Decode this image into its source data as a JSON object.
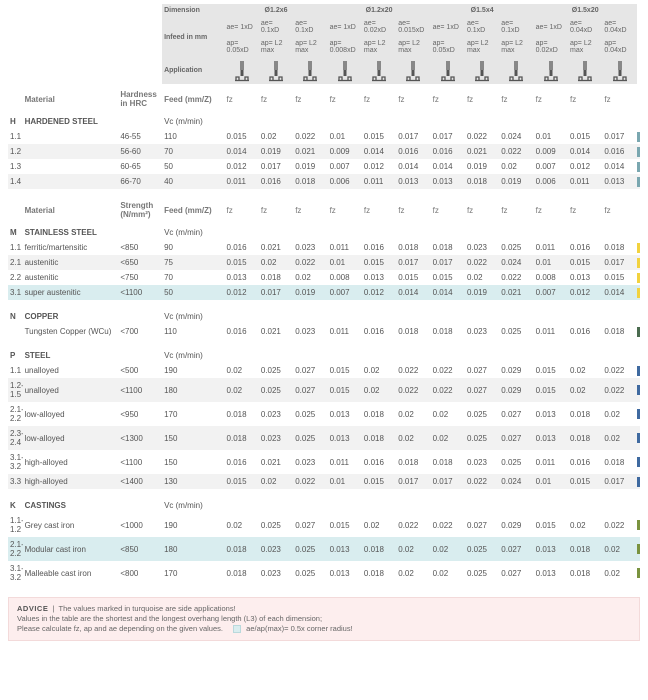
{
  "colors": {
    "header_bg": "#e6e6e6",
    "alt_row": "#f2f2f2",
    "turquoise": "#d9edef",
    "footer_bg": "#fdeeee",
    "stripe_hardened": "#7aa7b0",
    "stripe_stainless": "#f2d23e",
    "stripe_copper": "#4a6b4f",
    "stripe_steel": "#3f6aa0",
    "stripe_castings": "#7a933f"
  },
  "header": {
    "dimension": "Dimension",
    "infeed": "Infeed in mm",
    "application": "Application",
    "groups": [
      "Ø1.2x6",
      "Ø1.2x20",
      "Ø1.5x4",
      "Ø1.5x20"
    ],
    "ae_row": [
      "ae= 1xD",
      "ae= 0.1xD",
      "ae= 0.1xD",
      "ae= 1xD",
      "ae= 0.02xD",
      "ae= 0.015xD",
      "ae= 1xD",
      "ae= 0.1xD",
      "ae= 0.1xD",
      "ae= 1xD",
      "ae= 0.04xD",
      "ae= 0.04xD"
    ],
    "ap_row": [
      "ap= 0.05xD",
      "ap= L2 max",
      "ap= L2 max",
      "ap= 0.008xD",
      "ap= L2 max",
      "ap= L2 max",
      "ap= 0.05xD",
      "ap= L2 max",
      "ap= L2 max",
      "ap= 0.02xD",
      "ap= L2 max",
      "ap= 0.04xD"
    ],
    "fz_row": [
      "fz",
      "fz",
      "fz",
      "fz",
      "fz",
      "fz",
      "fz",
      "fz",
      "fz",
      "fz",
      "fz",
      "fz"
    ]
  },
  "col_labels": {
    "material": "Material",
    "hardness": "Hardness in HRC",
    "strength": "Strength (N/mm²)",
    "feed": "Feed (mm/Z)",
    "vc": "Vc (m/min)"
  },
  "sections": [
    {
      "code": "H",
      "name": "HARDENED STEEL",
      "hard_label": "hardness",
      "stripe": "stripe_hardened",
      "rows": [
        {
          "n": "1.1",
          "m": "",
          "h": "46-55",
          "vc": "110",
          "v": [
            "0.015",
            "0.02",
            "0.022",
            "0.01",
            "0.015",
            "0.017",
            "0.017",
            "0.022",
            "0.024",
            "0.01",
            "0.015",
            "0.017"
          ],
          "style": "plain"
        },
        {
          "n": "1.2",
          "m": "",
          "h": "56-60",
          "vc": "70",
          "v": [
            "0.014",
            "0.019",
            "0.021",
            "0.009",
            "0.014",
            "0.016",
            "0.016",
            "0.021",
            "0.022",
            "0.009",
            "0.014",
            "0.016"
          ],
          "style": "alt"
        },
        {
          "n": "1.3",
          "m": "",
          "h": "60-65",
          "vc": "50",
          "v": [
            "0.012",
            "0.017",
            "0.019",
            "0.007",
            "0.012",
            "0.014",
            "0.014",
            "0.019",
            "0.02",
            "0.007",
            "0.012",
            "0.014"
          ],
          "style": "plain"
        },
        {
          "n": "1.4",
          "m": "",
          "h": "66-70",
          "vc": "40",
          "v": [
            "0.011",
            "0.016",
            "0.018",
            "0.006",
            "0.011",
            "0.013",
            "0.013",
            "0.018",
            "0.019",
            "0.006",
            "0.011",
            "0.013"
          ],
          "style": "alt"
        }
      ]
    },
    {
      "code": "M",
      "name": "STAINLESS STEEL",
      "hard_label": "strength",
      "stripe": "stripe_stainless",
      "rows": [
        {
          "n": "1.1",
          "m": "ferritic/martensitic",
          "h": "<850",
          "vc": "90",
          "v": [
            "0.016",
            "0.021",
            "0.023",
            "0.011",
            "0.016",
            "0.018",
            "0.018",
            "0.023",
            "0.025",
            "0.011",
            "0.016",
            "0.018"
          ],
          "style": "plain"
        },
        {
          "n": "2.1",
          "m": "austenitic",
          "h": "<650",
          "vc": "75",
          "v": [
            "0.015",
            "0.02",
            "0.022",
            "0.01",
            "0.015",
            "0.017",
            "0.017",
            "0.022",
            "0.024",
            "0.01",
            "0.015",
            "0.017"
          ],
          "style": "alt"
        },
        {
          "n": "2.2",
          "m": "austenitic",
          "h": "<750",
          "vc": "70",
          "v": [
            "0.013",
            "0.018",
            "0.02",
            "0.008",
            "0.013",
            "0.015",
            "0.015",
            "0.02",
            "0.022",
            "0.008",
            "0.013",
            "0.015"
          ],
          "style": "plain"
        },
        {
          "n": "3.1",
          "m": "super austenitic",
          "h": "<1100",
          "vc": "50",
          "v": [
            "0.012",
            "0.017",
            "0.019",
            "0.007",
            "0.012",
            "0.014",
            "0.014",
            "0.019",
            "0.021",
            "0.007",
            "0.012",
            "0.014"
          ],
          "style": "tq"
        }
      ]
    },
    {
      "code": "N",
      "name": "COPPER",
      "hard_label": "strength",
      "stripe": "stripe_copper",
      "rows": [
        {
          "n": "",
          "m": "Tungsten Copper (WCu)",
          "h": "<700",
          "vc": "110",
          "v": [
            "0.016",
            "0.021",
            "0.023",
            "0.011",
            "0.016",
            "0.018",
            "0.018",
            "0.023",
            "0.025",
            "0.011",
            "0.016",
            "0.018"
          ],
          "style": "plain"
        }
      ]
    },
    {
      "code": "P",
      "name": "STEEL",
      "hard_label": "strength",
      "stripe": "stripe_steel",
      "rows": [
        {
          "n": "1.1",
          "m": "unalloyed",
          "h": "<500",
          "vc": "190",
          "v": [
            "0.02",
            "0.025",
            "0.027",
            "0.015",
            "0.02",
            "0.022",
            "0.022",
            "0.027",
            "0.029",
            "0.015",
            "0.02",
            "0.022"
          ],
          "style": "plain"
        },
        {
          "n": "1.2-1.5",
          "m": "unalloyed",
          "h": "<1100",
          "vc": "180",
          "v": [
            "0.02",
            "0.025",
            "0.027",
            "0.015",
            "0.02",
            "0.022",
            "0.022",
            "0.027",
            "0.029",
            "0.015",
            "0.02",
            "0.022"
          ],
          "style": "alt"
        },
        {
          "n": "2.1-2.2",
          "m": "low-alloyed",
          "h": "<950",
          "vc": "170",
          "v": [
            "0.018",
            "0.023",
            "0.025",
            "0.013",
            "0.018",
            "0.02",
            "0.02",
            "0.025",
            "0.027",
            "0.013",
            "0.018",
            "0.02"
          ],
          "style": "plain"
        },
        {
          "n": "2.3-2.4",
          "m": "low-alloyed",
          "h": "<1300",
          "vc": "150",
          "v": [
            "0.018",
            "0.023",
            "0.025",
            "0.013",
            "0.018",
            "0.02",
            "0.02",
            "0.025",
            "0.027",
            "0.013",
            "0.018",
            "0.02"
          ],
          "style": "alt"
        },
        {
          "n": "3.1-3.2",
          "m": "high-alloyed",
          "h": "<1100",
          "vc": "150",
          "v": [
            "0.016",
            "0.021",
            "0.023",
            "0.011",
            "0.016",
            "0.018",
            "0.018",
            "0.023",
            "0.025",
            "0.011",
            "0.016",
            "0.018"
          ],
          "style": "plain"
        },
        {
          "n": "3.3",
          "m": "high-alloyed",
          "h": "<1400",
          "vc": "130",
          "v": [
            "0.015",
            "0.02",
            "0.022",
            "0.01",
            "0.015",
            "0.017",
            "0.017",
            "0.022",
            "0.024",
            "0.01",
            "0.015",
            "0.017"
          ],
          "style": "alt"
        }
      ]
    },
    {
      "code": "K",
      "name": "CASTINGS",
      "hard_label": "strength",
      "stripe": "stripe_castings",
      "rows": [
        {
          "n": "1.1-1.2",
          "m": "Grey cast iron",
          "h": "<1000",
          "vc": "190",
          "v": [
            "0.02",
            "0.025",
            "0.027",
            "0.015",
            "0.02",
            "0.022",
            "0.022",
            "0.027",
            "0.029",
            "0.015",
            "0.02",
            "0.022"
          ],
          "style": "plain"
        },
        {
          "n": "2.1-2.2",
          "m": "Modular cast iron",
          "h": "<850",
          "vc": "180",
          "v": [
            "0.018",
            "0.023",
            "0.025",
            "0.013",
            "0.018",
            "0.02",
            "0.02",
            "0.025",
            "0.027",
            "0.013",
            "0.018",
            "0.02"
          ],
          "style": "tq"
        },
        {
          "n": "3.1-3.2",
          "m": "Malleable cast iron",
          "h": "<800",
          "vc": "170",
          "v": [
            "0.018",
            "0.023",
            "0.025",
            "0.013",
            "0.018",
            "0.02",
            "0.02",
            "0.025",
            "0.027",
            "0.013",
            "0.018",
            "0.02"
          ],
          "style": "plain"
        }
      ]
    }
  ],
  "footer": {
    "title": "ADVICE",
    "l1": "The values marked in turquoise are side applications!",
    "l2": "Values in the table are the shortest and the longest overhang length (L3) of each dimension;",
    "l3": "Please calculate fz, ap and ae depending on the given values.",
    "legend": "ae/ap(max)= 0.5x corner radius!"
  }
}
